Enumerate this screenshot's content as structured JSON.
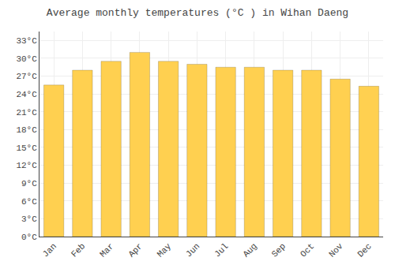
{
  "chart_data": {
    "type": "bar",
    "title": "Average monthly temperatures (°C ) in Wihan Daeng",
    "categories": [
      "Jan",
      "Feb",
      "Mar",
      "Apr",
      "May",
      "Jun",
      "Jul",
      "Aug",
      "Sep",
      "Oct",
      "Nov",
      "Dec"
    ],
    "values": [
      25.5,
      28.0,
      29.5,
      31.0,
      29.5,
      29.0,
      28.5,
      28.5,
      28.0,
      28.0,
      26.5,
      25.3
    ],
    "color": "#FFD050",
    "ylim": [
      0,
      34.5
    ],
    "yticks": [
      {
        "value": 0,
        "label": "0°C"
      },
      {
        "value": 3,
        "label": "3°C"
      },
      {
        "value": 6,
        "label": "6°C"
      },
      {
        "value": 9,
        "label": "9°C"
      },
      {
        "value": 12,
        "label": "12°C"
      },
      {
        "value": 15,
        "label": "15°C"
      },
      {
        "value": 18,
        "label": "18°C"
      },
      {
        "value": 21,
        "label": "21°C"
      },
      {
        "value": 24,
        "label": "24°C"
      },
      {
        "value": 27,
        "label": "27°C"
      },
      {
        "value": 30,
        "label": "30°C"
      },
      {
        "value": 33,
        "label": "33°C"
      }
    ],
    "grid": true
  }
}
